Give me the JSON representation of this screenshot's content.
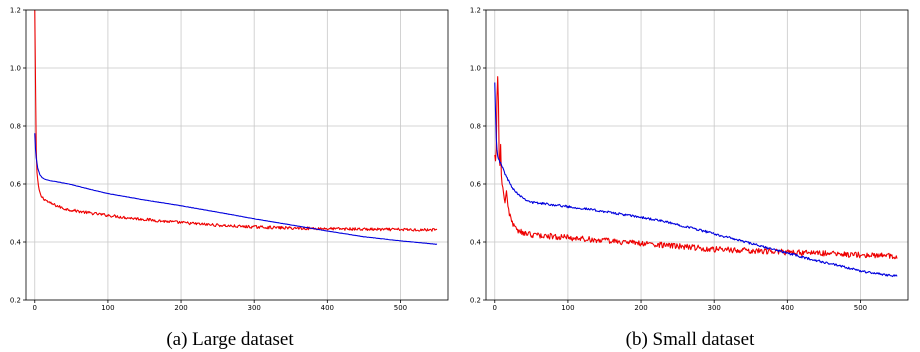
{
  "captions": {
    "a": "(a)  Large dataset",
    "b": "(b)  Small dataset"
  },
  "colors": {
    "series_red": "#ee0000",
    "series_blue": "#0000dd",
    "grid": "#c8c8c8",
    "axis": "#000000"
  },
  "chart_data": [
    {
      "type": "line",
      "title": "",
      "xlabel": "",
      "ylabel": "",
      "xlim": [
        -12,
        565
      ],
      "ylim": [
        0.2,
        1.2
      ],
      "xticks": [
        0,
        100,
        200,
        300,
        400,
        500
      ],
      "yticks": [
        0.2,
        0.4,
        0.6,
        0.8,
        1.0,
        1.2
      ],
      "xtick_labels": [
        "0",
        "100",
        "200",
        "300",
        "400",
        "500"
      ],
      "ytick_labels": [
        "0.2",
        "0.4",
        "0.6",
        "0.8",
        "1.0",
        "1.2"
      ],
      "grid": true,
      "legend": "none",
      "series": [
        {
          "color": "#ee0000",
          "x": [
            0,
            1,
            2,
            3,
            5,
            8,
            12,
            20,
            30,
            40,
            50,
            75,
            100,
            125,
            150,
            175,
            200,
            225,
            250,
            275,
            300,
            325,
            350,
            375,
            400,
            425,
            450,
            475,
            500,
            525,
            550
          ],
          "y": [
            1.2,
            0.95,
            0.72,
            0.64,
            0.59,
            0.56,
            0.55,
            0.535,
            0.525,
            0.515,
            0.51,
            0.5,
            0.492,
            0.484,
            0.478,
            0.472,
            0.467,
            0.462,
            0.458,
            0.454,
            0.452,
            0.45,
            0.448,
            0.447,
            0.446,
            0.445,
            0.444,
            0.443,
            0.443,
            0.442,
            0.442
          ],
          "noise": 0.005
        },
        {
          "color": "#0000dd",
          "x": [
            0,
            1,
            2,
            4,
            7,
            10,
            15,
            20,
            30,
            40,
            50,
            75,
            100,
            150,
            200,
            250,
            300,
            350,
            400,
            450,
            500,
            550
          ],
          "y": [
            0.775,
            0.72,
            0.69,
            0.655,
            0.632,
            0.622,
            0.615,
            0.612,
            0.608,
            0.603,
            0.598,
            0.582,
            0.567,
            0.545,
            0.525,
            0.503,
            0.48,
            0.459,
            0.438,
            0.418,
            0.404,
            0.392
          ],
          "noise": 0.0005
        }
      ]
    },
    {
      "type": "line",
      "title": "",
      "xlabel": "",
      "ylabel": "",
      "xlim": [
        -12,
        565
      ],
      "ylim": [
        0.2,
        1.2
      ],
      "xticks": [
        0,
        100,
        200,
        300,
        400,
        500
      ],
      "yticks": [
        0.2,
        0.4,
        0.6,
        0.8,
        1.0,
        1.2
      ],
      "xtick_labels": [
        "0",
        "100",
        "200",
        "300",
        "400",
        "500"
      ],
      "ytick_labels": [
        "0.2",
        "0.4",
        "0.6",
        "0.8",
        "1.0",
        "1.2"
      ],
      "grid": true,
      "legend": "none",
      "series": [
        {
          "color": "#ee0000",
          "x": [
            0,
            1,
            2,
            3,
            4,
            5,
            6,
            7,
            8,
            9,
            10,
            12,
            14,
            16,
            18,
            20,
            25,
            30,
            40,
            50,
            75,
            100,
            150,
            200,
            250,
            300,
            350,
            400,
            450,
            500,
            550
          ],
          "y": [
            0.7,
            0.68,
            0.72,
            0.9,
            0.98,
            0.88,
            0.7,
            0.66,
            0.74,
            0.64,
            0.6,
            0.56,
            0.54,
            0.58,
            0.52,
            0.5,
            0.46,
            0.44,
            0.43,
            0.425,
            0.42,
            0.415,
            0.405,
            0.395,
            0.385,
            0.375,
            0.37,
            0.365,
            0.36,
            0.355,
            0.35
          ],
          "noise": 0.01
        },
        {
          "color": "#0000dd",
          "x": [
            0,
            1,
            2,
            3,
            4,
            5,
            8,
            10,
            15,
            20,
            25,
            30,
            40,
            50,
            75,
            100,
            125,
            150,
            175,
            200,
            225,
            250,
            275,
            300,
            325,
            350,
            375,
            400,
            425,
            450,
            475,
            500,
            525,
            550
          ],
          "y": [
            0.95,
            0.85,
            0.76,
            0.72,
            0.7,
            0.69,
            0.67,
            0.66,
            0.63,
            0.605,
            0.585,
            0.57,
            0.55,
            0.537,
            0.53,
            0.522,
            0.514,
            0.505,
            0.495,
            0.485,
            0.474,
            0.46,
            0.445,
            0.428,
            0.412,
            0.395,
            0.378,
            0.362,
            0.345,
            0.33,
            0.315,
            0.3,
            0.29,
            0.283
          ],
          "noise": 0.004
        }
      ]
    }
  ]
}
